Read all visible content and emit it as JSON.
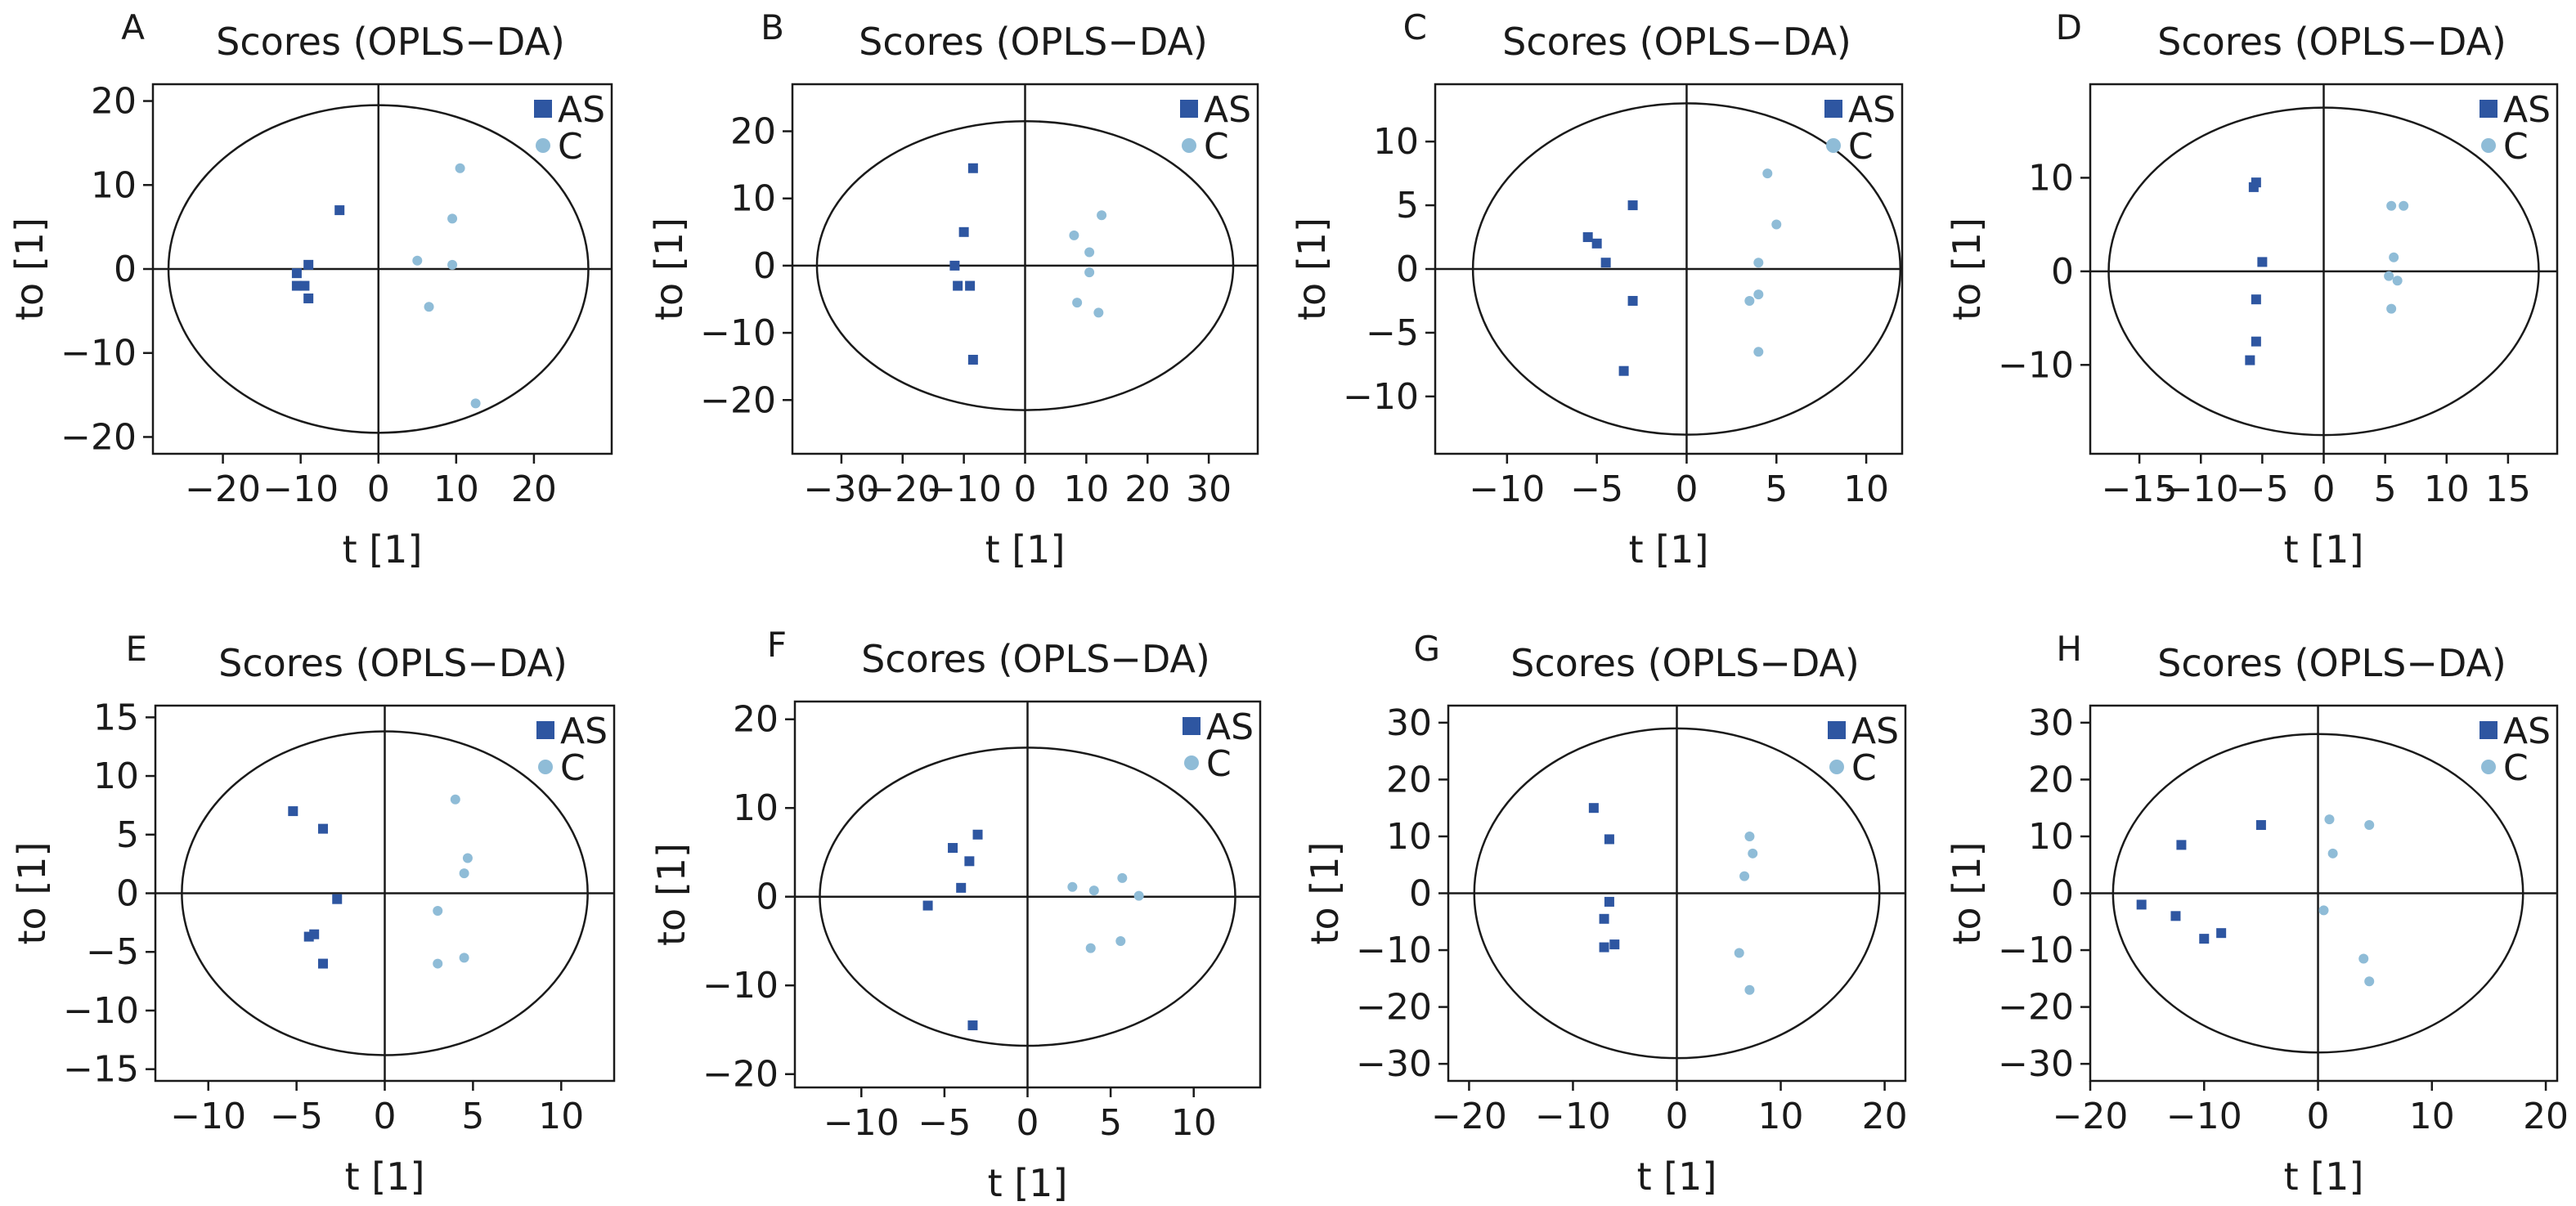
{
  "colors": {
    "AS": "#2e56a1",
    "C": "#8fbcd7",
    "axis": "#1a1a1a"
  },
  "chart_data": [
    {
      "type": "scatter",
      "panel": "A",
      "title": "Scores (OPLS−DA)",
      "xlabel": "t [1]",
      "ylabel": "to [1]",
      "xlim": [
        -29,
        30
      ],
      "ylim": [
        -22,
        22
      ],
      "xticks": [
        -20,
        -10,
        0,
        10,
        20
      ],
      "yticks": [
        -20,
        -10,
        0,
        10,
        20
      ],
      "ellipse": {
        "rx": 27,
        "ry": 19.5
      },
      "legend_position": "top-right",
      "series": [
        {
          "name": "AS",
          "marker": "square",
          "points": [
            [
              -5,
              7
            ],
            [
              -10.5,
              -0.5
            ],
            [
              -10.5,
              -2
            ],
            [
              -9.5,
              -2
            ],
            [
              -9,
              0.5
            ],
            [
              -9,
              -3.5
            ]
          ]
        },
        {
          "name": "C",
          "marker": "circle",
          "points": [
            [
              10.5,
              12
            ],
            [
              9.5,
              6
            ],
            [
              5,
              1
            ],
            [
              9.5,
              0.5
            ],
            [
              6.5,
              -4.5
            ],
            [
              12.5,
              -16
            ]
          ]
        }
      ]
    },
    {
      "type": "scatter",
      "panel": "B",
      "title": "Scores (OPLS−DA)",
      "xlabel": "t [1]",
      "ylabel": "to [1]",
      "xlim": [
        -38,
        38
      ],
      "ylim": [
        -28,
        27
      ],
      "xticks": [
        -30,
        -20,
        -10,
        0,
        10,
        20,
        30
      ],
      "yticks": [
        -20,
        -10,
        0,
        10,
        20
      ],
      "ellipse": {
        "rx": 34,
        "ry": 21.5
      },
      "legend_position": "top-right",
      "series": [
        {
          "name": "AS",
          "marker": "square",
          "points": [
            [
              -8.5,
              14.5
            ],
            [
              -10,
              5
            ],
            [
              -11.5,
              0
            ],
            [
              -11,
              -3
            ],
            [
              -9,
              -3
            ],
            [
              -8.5,
              -14
            ]
          ]
        },
        {
          "name": "C",
          "marker": "circle",
          "points": [
            [
              12.5,
              7.5
            ],
            [
              8,
              4.5
            ],
            [
              10.5,
              2
            ],
            [
              10.5,
              -1
            ],
            [
              8.5,
              -5.5
            ],
            [
              12,
              -7
            ]
          ]
        }
      ]
    },
    {
      "type": "scatter",
      "panel": "C",
      "title": "Scores (OPLS−DA)",
      "xlabel": "t [1]",
      "ylabel": "to [1]",
      "xlim": [
        -14,
        12
      ],
      "ylim": [
        -14.5,
        14.5
      ],
      "xticks": [
        -10,
        -5,
        0,
        5,
        10
      ],
      "yticks": [
        -10,
        -5,
        0,
        5,
        10
      ],
      "ellipse": {
        "rx": 11.9,
        "ry": 13
      },
      "legend_position": "top-right",
      "series": [
        {
          "name": "AS",
          "marker": "square",
          "points": [
            [
              -3,
              5
            ],
            [
              -5.5,
              2.5
            ],
            [
              -5,
              2
            ],
            [
              -4.5,
              0.5
            ],
            [
              -3,
              -2.5
            ],
            [
              -3.5,
              -8
            ]
          ]
        },
        {
          "name": "C",
          "marker": "circle",
          "points": [
            [
              4.5,
              7.5
            ],
            [
              5,
              3.5
            ],
            [
              4,
              0.5
            ],
            [
              4,
              -2
            ],
            [
              3.5,
              -2.5
            ],
            [
              4,
              -6.5
            ]
          ]
        }
      ]
    },
    {
      "type": "scatter",
      "panel": "D",
      "title": "Scores (OPLS−DA)",
      "xlabel": "t [1]",
      "ylabel": "to [1]",
      "xlim": [
        -19,
        19
      ],
      "ylim": [
        -19.5,
        20
      ],
      "xticks": [
        -15,
        -10,
        -5,
        0,
        5,
        10,
        15
      ],
      "yticks": [
        -10,
        0,
        10
      ],
      "ellipse": {
        "rx": 17.5,
        "ry": 17.5
      },
      "legend_position": "top-right",
      "series": [
        {
          "name": "AS",
          "marker": "square",
          "points": [
            [
              -5.5,
              9.5
            ],
            [
              -5.7,
              9
            ],
            [
              -5,
              1
            ],
            [
              -5.5,
              -3
            ],
            [
              -5.5,
              -7.5
            ],
            [
              -6,
              -9.5
            ]
          ]
        },
        {
          "name": "C",
          "marker": "circle",
          "points": [
            [
              5.5,
              7
            ],
            [
              6.5,
              7
            ],
            [
              5.7,
              1.5
            ],
            [
              5.3,
              -0.5
            ],
            [
              6,
              -1
            ],
            [
              5.5,
              -4
            ]
          ]
        }
      ]
    },
    {
      "type": "scatter",
      "panel": "E",
      "title": "Scores (OPLS−DA)",
      "xlabel": "t [1]",
      "ylabel": "to [1]",
      "xlim": [
        -13,
        13
      ],
      "ylim": [
        -16,
        16
      ],
      "xticks": [
        -10,
        -5,
        0,
        5,
        10
      ],
      "yticks": [
        -15,
        -10,
        -5,
        0,
        5,
        10,
        15
      ],
      "ellipse": {
        "rx": 11.5,
        "ry": 13.8
      },
      "legend_position": "top-right",
      "series": [
        {
          "name": "AS",
          "marker": "square",
          "points": [
            [
              -5.2,
              7
            ],
            [
              -3.5,
              5.5
            ],
            [
              -2.7,
              -0.5
            ],
            [
              -4,
              -3.5
            ],
            [
              -4.3,
              -3.7
            ],
            [
              -3.5,
              -6
            ]
          ]
        },
        {
          "name": "C",
          "marker": "circle",
          "points": [
            [
              4,
              8
            ],
            [
              4.7,
              3
            ],
            [
              4.5,
              1.7
            ],
            [
              3,
              -1.5
            ],
            [
              4.5,
              -5.5
            ],
            [
              3,
              -6
            ]
          ]
        }
      ]
    },
    {
      "type": "scatter",
      "panel": "F",
      "title": "Scores (OPLS−DA)",
      "xlabel": "t [1]",
      "ylabel": "to [1]",
      "xlim": [
        -14,
        14
      ],
      "ylim": [
        -21.5,
        22
      ],
      "xticks": [
        -10,
        -5,
        0,
        5,
        10
      ],
      "yticks": [
        -20,
        -10,
        0,
        10,
        20
      ],
      "ellipse": {
        "rx": 12.5,
        "ry": 16.8
      },
      "legend_position": "top-right",
      "series": [
        {
          "name": "AS",
          "marker": "square",
          "points": [
            [
              -3,
              7
            ],
            [
              -4.5,
              5.5
            ],
            [
              -3.5,
              4
            ],
            [
              -4,
              1
            ],
            [
              -6,
              -1
            ],
            [
              -3.3,
              -14.5
            ]
          ]
        },
        {
          "name": "C",
          "marker": "circle",
          "points": [
            [
              2.7,
              1.1
            ],
            [
              4,
              0.7
            ],
            [
              5.7,
              2.1
            ],
            [
              6.7,
              0.1
            ],
            [
              3.8,
              -5.8
            ],
            [
              5.6,
              -5
            ]
          ]
        }
      ]
    },
    {
      "type": "scatter",
      "panel": "G",
      "title": "Scores (OPLS−DA)",
      "xlabel": "t [1]",
      "ylabel": "to [1]",
      "xlim": [
        -22,
        22
      ],
      "ylim": [
        -33,
        33
      ],
      "xticks": [
        -20,
        -10,
        0,
        10,
        20
      ],
      "yticks": [
        -30,
        -20,
        -10,
        0,
        10,
        20,
        30
      ],
      "ellipse": {
        "rx": 19.5,
        "ry": 29
      },
      "legend_position": "top-right",
      "series": [
        {
          "name": "AS",
          "marker": "square",
          "points": [
            [
              -8,
              15
            ],
            [
              -6.5,
              9.5
            ],
            [
              -6.5,
              -1.5
            ],
            [
              -7,
              -4.5
            ],
            [
              -7,
              -9.5
            ],
            [
              -6,
              -9
            ]
          ]
        },
        {
          "name": "C",
          "marker": "circle",
          "points": [
            [
              7,
              10
            ],
            [
              7.3,
              7
            ],
            [
              6.5,
              3
            ],
            [
              6,
              -10.5
            ],
            [
              7,
              -17
            ]
          ]
        }
      ]
    },
    {
      "type": "scatter",
      "panel": "H",
      "title": "Scores (OPLS−DA)",
      "xlabel": "t [1]",
      "ylabel": "to [1]",
      "xlim": [
        -20,
        21
      ],
      "ylim": [
        -33,
        33
      ],
      "xticks": [
        -20,
        -10,
        0,
        10,
        20
      ],
      "yticks": [
        -30,
        -20,
        -10,
        0,
        10,
        20,
        30
      ],
      "ellipse": {
        "rx": 18,
        "ry": 28
      },
      "legend_position": "top-right",
      "series": [
        {
          "name": "AS",
          "marker": "square",
          "points": [
            [
              -5,
              12
            ],
            [
              -12,
              8.5
            ],
            [
              -15.5,
              -2
            ],
            [
              -12.5,
              -4
            ],
            [
              -10,
              -8
            ],
            [
              -8.5,
              -7
            ]
          ]
        },
        {
          "name": "C",
          "marker": "circle",
          "points": [
            [
              1,
              13
            ],
            [
              4.5,
              12
            ],
            [
              1.3,
              7
            ],
            [
              0.5,
              -3
            ],
            [
              4,
              -11.5
            ],
            [
              4.5,
              -15.5
            ]
          ]
        }
      ]
    }
  ]
}
